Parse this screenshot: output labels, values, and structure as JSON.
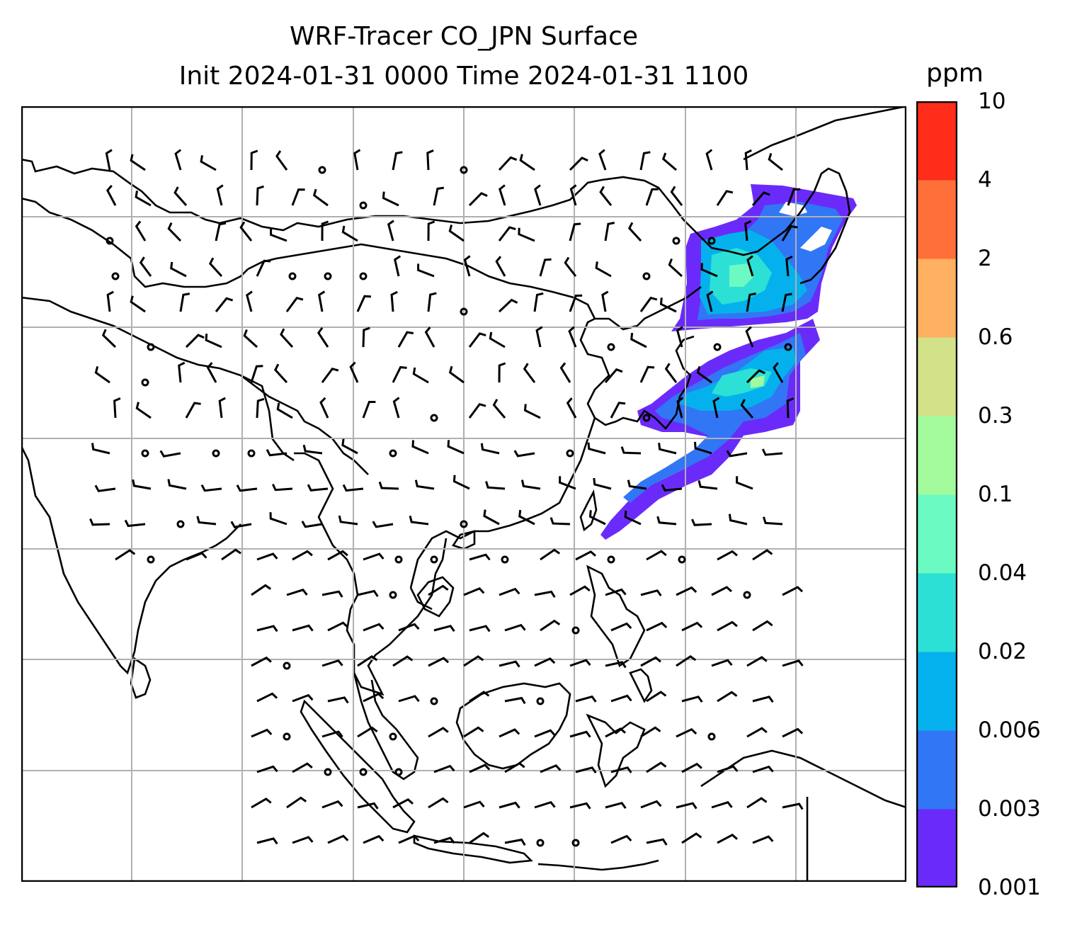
{
  "title": {
    "line1": "WRF-Tracer CO_JPN Surface",
    "line2": "Init 2024-01-31 0000 Time 2024-01-31 1100"
  },
  "map": {
    "projection": "PlateCarree",
    "domain": "East / Southeast Asia",
    "variable": "CO_JPN tracer concentration (surface) with 10 m wind barbs",
    "gridlines": true,
    "plume_region": "Japan and Kuril / Sakhalin area, plume extending southwest over Pacific"
  },
  "colorbar": {
    "unit": "ppm",
    "levels": [
      "0.001",
      "0.003",
      "0.006",
      "0.02",
      "0.04",
      "0.1",
      "0.3",
      "0.6",
      "2",
      "4",
      "10"
    ],
    "colors": [
      "#6a2bfa",
      "#3176f5",
      "#05b1ec",
      "#2de0d5",
      "#6bfac2",
      "#a2fa9c",
      "#d3e188",
      "#ffb161",
      "#ff6f3a",
      "#ff2d19"
    ]
  }
}
